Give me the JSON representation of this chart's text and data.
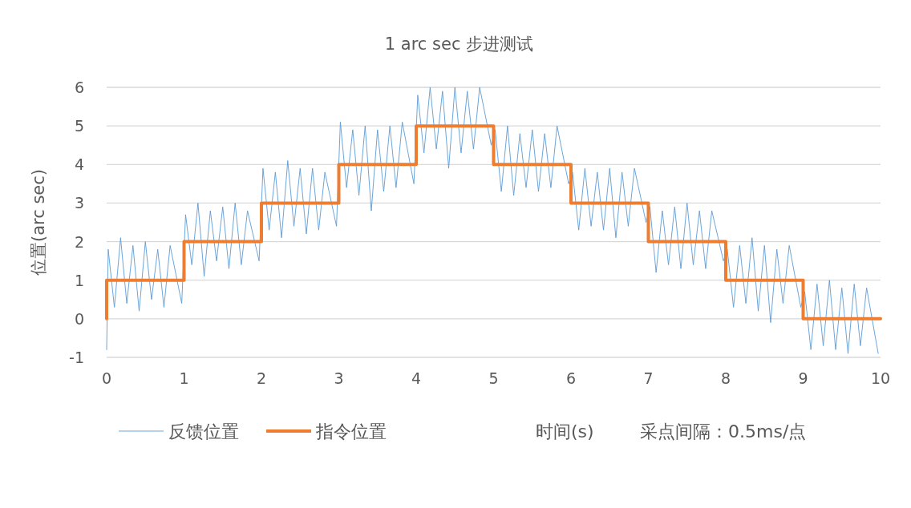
{
  "chart_data": {
    "type": "line",
    "title": "1 arc sec 步进测试",
    "xlabel": "时间(s)",
    "ylabel": "位置(arc sec)",
    "annotations": [
      "采点间隔：0.5ms/点"
    ],
    "xlim": [
      0,
      10
    ],
    "xticks": [
      0,
      1,
      2,
      3,
      4,
      5,
      6,
      7,
      8,
      9,
      10
    ],
    "ylim": [
      -1,
      6
    ],
    "yticks": [
      -1,
      0,
      1,
      2,
      3,
      4,
      5,
      6
    ],
    "grid": "y",
    "legend": "bottom",
    "series": [
      {
        "name": "反馈位置",
        "color": "#5b9bd5",
        "x": [
          0,
          0.02,
          0.1,
          0.18,
          0.26,
          0.34,
          0.42,
          0.5,
          0.58,
          0.66,
          0.74,
          0.82,
          0.97,
          1.02,
          1.1,
          1.18,
          1.26,
          1.34,
          1.42,
          1.5,
          1.58,
          1.66,
          1.74,
          1.82,
          1.97,
          2.02,
          2.1,
          2.18,
          2.26,
          2.34,
          2.42,
          2.5,
          2.58,
          2.66,
          2.74,
          2.82,
          2.97,
          3.02,
          3.1,
          3.18,
          3.26,
          3.34,
          3.42,
          3.5,
          3.58,
          3.66,
          3.74,
          3.82,
          3.97,
          4.02,
          4.1,
          4.18,
          4.26,
          4.34,
          4.42,
          4.5,
          4.58,
          4.66,
          4.74,
          4.82,
          4.97,
          5.02,
          5.1,
          5.18,
          5.26,
          5.34,
          5.42,
          5.5,
          5.58,
          5.66,
          5.74,
          5.82,
          5.97,
          6.02,
          6.1,
          6.18,
          6.26,
          6.34,
          6.42,
          6.5,
          6.58,
          6.66,
          6.74,
          6.82,
          6.97,
          7.02,
          7.1,
          7.18,
          7.26,
          7.34,
          7.42,
          7.5,
          7.58,
          7.66,
          7.74,
          7.82,
          7.97,
          8.02,
          8.1,
          8.18,
          8.26,
          8.34,
          8.42,
          8.5,
          8.58,
          8.66,
          8.74,
          8.82,
          8.97,
          9.02,
          9.1,
          9.18,
          9.26,
          9.34,
          9.42,
          9.5,
          9.58,
          9.66,
          9.74,
          9.82,
          9.97
        ],
        "values": [
          -0.8,
          1.8,
          0.3,
          2.1,
          0.4,
          1.9,
          0.2,
          2.0,
          0.5,
          1.8,
          0.3,
          1.9,
          0.4,
          2.7,
          1.4,
          3.0,
          1.1,
          2.8,
          1.5,
          2.9,
          1.3,
          3.0,
          1.4,
          2.8,
          1.5,
          3.9,
          2.3,
          3.8,
          2.1,
          4.1,
          2.4,
          3.9,
          2.2,
          3.9,
          2.3,
          3.8,
          2.4,
          5.1,
          3.4,
          4.9,
          3.2,
          5.0,
          2.8,
          4.9,
          3.3,
          5.0,
          3.4,
          5.1,
          3.5,
          5.8,
          4.3,
          6.0,
          4.4,
          5.9,
          3.9,
          6.0,
          4.3,
          5.9,
          4.4,
          6.0,
          4.5,
          4.9,
          3.3,
          5.0,
          3.2,
          4.8,
          3.4,
          4.9,
          3.3,
          4.8,
          3.4,
          5.0,
          3.5,
          3.8,
          2.3,
          3.9,
          2.4,
          3.8,
          2.3,
          3.9,
          2.1,
          3.8,
          2.4,
          3.9,
          2.5,
          2.9,
          1.2,
          2.8,
          1.4,
          2.9,
          1.3,
          3.0,
          1.4,
          2.8,
          1.3,
          2.8,
          1.5,
          1.8,
          0.3,
          1.9,
          0.4,
          2.1,
          0.2,
          1.9,
          -0.1,
          1.8,
          0.4,
          1.9,
          0.3,
          0.7,
          -0.8,
          0.9,
          -0.7,
          1.0,
          -0.8,
          0.8,
          -0.9,
          0.9,
          -0.7,
          0.8,
          -0.9
        ]
      },
      {
        "name": "指令位置",
        "color": "#ed7d31",
        "x": [
          0,
          0,
          1,
          1,
          2,
          2,
          3,
          3,
          4,
          4,
          5,
          5,
          6,
          6,
          7,
          7,
          8,
          8,
          9,
          9,
          10
        ],
        "values": [
          0,
          1,
          1,
          2,
          2,
          3,
          3,
          4,
          4,
          5,
          5,
          4,
          4,
          3,
          3,
          2,
          2,
          1,
          1,
          0,
          0
        ]
      }
    ]
  }
}
